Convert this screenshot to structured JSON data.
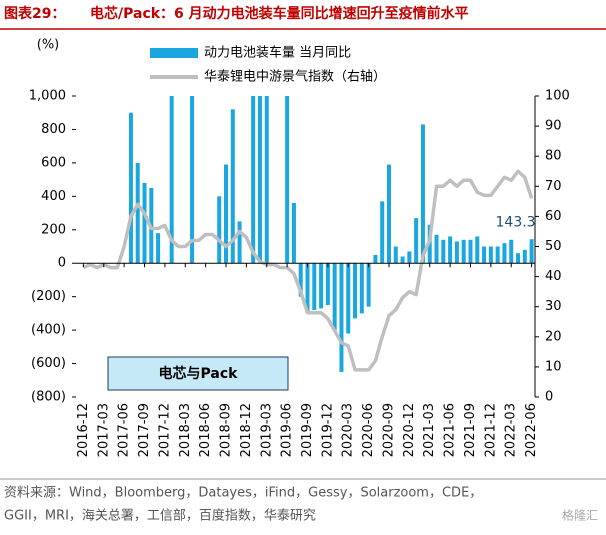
{
  "chart_data": {
    "type": "combo",
    "figure_label": "图表29：",
    "title": "电芯/Pack：6 月动力电池装车量同比增速回升至疫情前水平",
    "y_unit": "(%)",
    "annotation": "电芯与Pack",
    "source": [
      "资料来源：Wind，Bloomberg，Datayes，iFind，Gessy，Solarzoom，CDE，",
      "GGII，MRI，海关总署，工信部，百度指数，华泰研究"
    ],
    "watermark": "格隆汇",
    "categories": [
      "2016-12",
      null,
      null,
      "2017-03",
      null,
      null,
      "2017-06",
      null,
      null,
      "2017-09",
      null,
      null,
      "2017-12",
      null,
      null,
      "2018-03",
      null,
      null,
      "2018-06",
      null,
      null,
      "2018-09",
      null,
      null,
      "2018-12",
      null,
      null,
      "2019-03",
      null,
      null,
      "2019-06",
      null,
      null,
      "2019-09",
      null,
      null,
      "2019-12",
      null,
      null,
      "2020-03",
      null,
      null,
      "2020-06",
      null,
      null,
      "2020-09",
      null,
      null,
      "2020-12",
      null,
      null,
      "2021-03",
      null,
      null,
      "2021-06",
      null,
      null,
      "2021-09",
      null,
      null,
      "2021-12",
      null,
      null,
      "2022-03",
      null,
      null,
      "2022-06"
    ],
    "series": [
      {
        "name": "动力电池装车量 当月同比",
        "type": "bar",
        "color": "#1aa7e0",
        "values": [
          null,
          null,
          null,
          null,
          null,
          null,
          null,
          900,
          600,
          480,
          450,
          180,
          null,
          1000,
          null,
          null,
          1000,
          null,
          null,
          null,
          400,
          590,
          920,
          250,
          null,
          1000,
          1000,
          1000,
          null,
          null,
          1000,
          360,
          -200,
          -300,
          -280,
          -270,
          -250,
          -400,
          -650,
          -420,
          -330,
          -300,
          -260,
          50,
          370,
          590,
          100,
          40,
          70,
          270,
          830,
          230,
          170,
          140,
          160,
          130,
          140,
          140,
          160,
          100,
          100,
          100,
          120,
          140,
          60,
          80,
          143.3
        ]
      },
      {
        "name": "华泰锂电中游景气指数（右轴）",
        "type": "line",
        "axis": "y2",
        "color": "#bfbfbf",
        "values": [
          43,
          44,
          43,
          44,
          43,
          43,
          50,
          60,
          64,
          61,
          56,
          56,
          57,
          52,
          50,
          50,
          52,
          52,
          54,
          54,
          52,
          50,
          52,
          55,
          53,
          48,
          45,
          44,
          44,
          43,
          43,
          41,
          35,
          28,
          28,
          28,
          26,
          22,
          18,
          17,
          9,
          9,
          9,
          12,
          20,
          27,
          29,
          33,
          35,
          34,
          47,
          52,
          70,
          70,
          72,
          70,
          72,
          72,
          68,
          67,
          67,
          70,
          73,
          72,
          75,
          73,
          66
        ]
      }
    ],
    "ylim": [
      -800,
      1000
    ],
    "yticks": [
      {
        "value": 1000,
        "label": "1,000"
      },
      800,
      600,
      400,
      200,
      0,
      {
        "value": -200,
        "label": "(200)"
      },
      {
        "value": -400,
        "label": "(400)"
      },
      {
        "value": -600,
        "label": "(600)"
      },
      {
        "value": -800,
        "label": "(800)"
      }
    ],
    "y2lim": [
      0,
      100
    ],
    "y2ticks": [
      0,
      10,
      20,
      30,
      40,
      50,
      60,
      70,
      80,
      90,
      100
    ]
  }
}
